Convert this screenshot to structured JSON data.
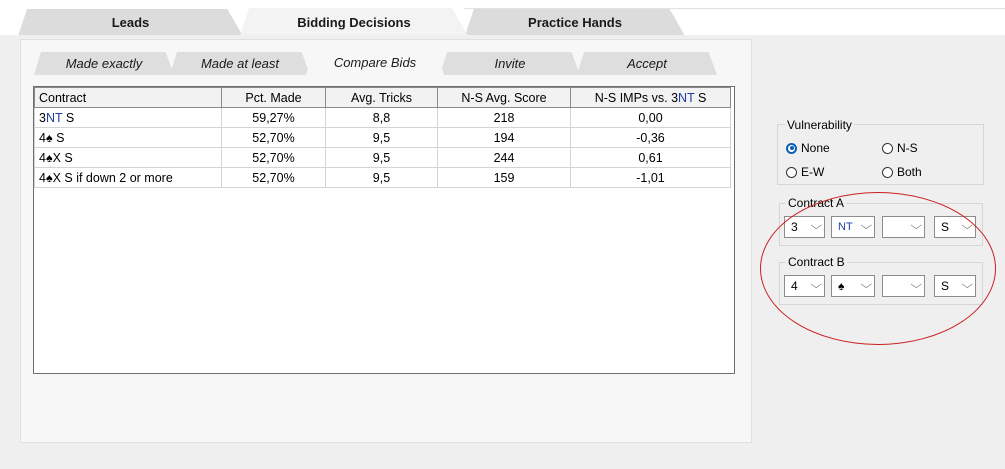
{
  "top_tabs": [
    "Leads",
    "Bidding Decisions",
    "Practice Hands"
  ],
  "sub_tabs": [
    "Made exactly",
    "Made at least",
    "Compare Bids",
    "Invite",
    "Accept"
  ],
  "table": {
    "headers": [
      "Contract",
      "Pct. Made",
      "Avg. Tricks",
      "N-S Avg. Score",
      "N-S IMPs vs. 3NT S"
    ],
    "header_imps": {
      "prefix": "N-S IMPs vs. 3",
      "nt": "NT",
      "suffix": " S"
    },
    "rows": [
      {
        "level": "3",
        "strain": "NT",
        "rest": " S",
        "pct": "59,27%",
        "tricks": "8,8",
        "score": "218",
        "imps": "0,00"
      },
      {
        "level": "4",
        "strain": "♠",
        "rest": " S",
        "pct": "52,70%",
        "tricks": "9,5",
        "score": "194",
        "imps": "-0,36"
      },
      {
        "level": "4",
        "strain": "♠",
        "rest": "X S",
        "pct": "52,70%",
        "tricks": "9,5",
        "score": "244",
        "imps": "0,61"
      },
      {
        "level": "4",
        "strain": "♠",
        "rest": "X S if down 2 or more",
        "pct": "52,70%",
        "tricks": "9,5",
        "score": "159",
        "imps": "-1,01"
      }
    ]
  },
  "vulnerability": {
    "title": "Vulnerability",
    "options": [
      "None",
      "N-S",
      "E-W",
      "Both"
    ],
    "selected": "None"
  },
  "contract_a": {
    "title": "Contract A",
    "level": "3",
    "strain": "NT",
    "double": "",
    "declarer": "S"
  },
  "contract_b": {
    "title": "Contract B",
    "level": "4",
    "strain": "♠",
    "double": "",
    "declarer": "S"
  },
  "icons": {
    "chevron": "⌵"
  },
  "colors": {
    "strain_blue": "#1c3da8",
    "radio_selected": "#0a5fb4",
    "annotation_circle": "#cc2020"
  }
}
